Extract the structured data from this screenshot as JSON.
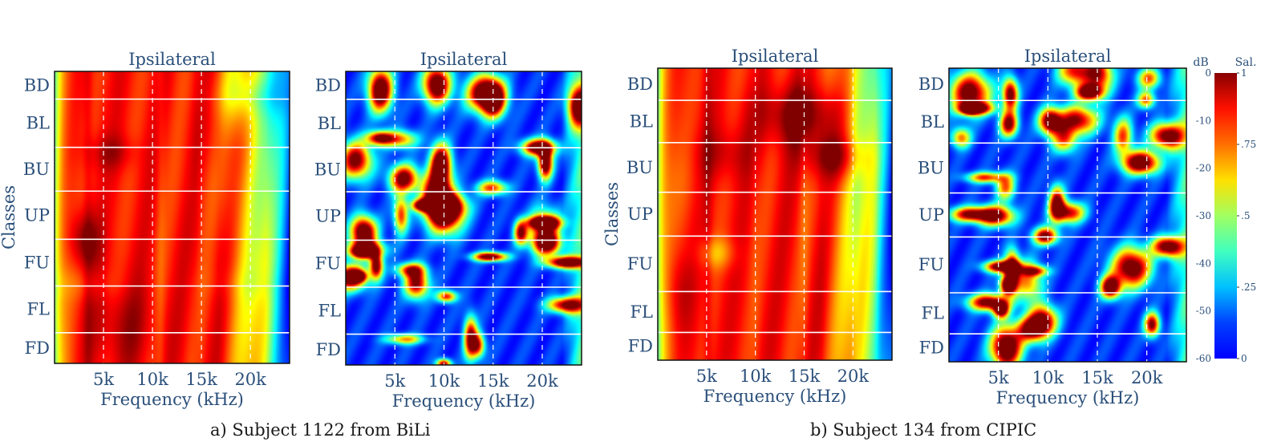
{
  "figure": {
    "panels": [
      {
        "id": "a-hrtf",
        "title": "Ipsilateral",
        "xlabel": "Frequency (kHz)",
        "ylabel": "Classes",
        "kind": "hrtf",
        "seed": 11,
        "class_bounds": [
          0.095,
          0.26,
          0.41,
          0.575,
          0.735,
          0.895
        ]
      },
      {
        "id": "a-sal",
        "title": "Ipsilateral",
        "xlabel": "Frequency (kHz)",
        "ylabel": "",
        "kind": "saliency",
        "seed": 23,
        "class_bounds": [
          0.095,
          0.26,
          0.41,
          0.575,
          0.735,
          0.895
        ]
      },
      {
        "id": "b-hrtf",
        "title": "Ipsilateral",
        "xlabel": "Frequency (kHz)",
        "ylabel": "Classes",
        "kind": "hrtf",
        "seed": 37,
        "class_bounds": [
          0.11,
          0.255,
          0.425,
          0.575,
          0.765,
          0.905
        ]
      },
      {
        "id": "b-sal",
        "title": "Ipsilateral",
        "xlabel": "Frequency (kHz)",
        "ylabel": "",
        "kind": "saliency",
        "seed": 53,
        "class_bounds": [
          0.11,
          0.255,
          0.425,
          0.575,
          0.765,
          0.905
        ]
      }
    ],
    "captions": {
      "a": "a) Subject 1122 from BiLi",
      "b": "b) Subject 134 from CIPIC"
    },
    "colorbar": {
      "db_label": "dB",
      "sal_label": "Sal.",
      "db_ticks": [
        "0",
        "-10",
        "-20",
        "-30",
        "-40",
        "-50",
        "-60"
      ],
      "sal_ticks": [
        "1",
        ".75",
        ".5",
        ".25",
        "0"
      ],
      "db_range": [
        -60,
        0
      ],
      "sal_range": [
        0,
        1
      ]
    }
  },
  "chart_data": {
    "type": "heatmap",
    "title": "Ipsilateral",
    "xlabel": "Frequency (kHz)",
    "ylabel": "Classes",
    "classes": [
      "BD",
      "BL",
      "BU",
      "UP",
      "FU",
      "FL",
      "FD"
    ],
    "x_ticks": [
      "5k",
      "10k",
      "15k",
      "20k"
    ],
    "x_tick_values_khz": [
      5,
      10,
      15,
      20
    ],
    "xlim_khz": [
      0,
      24
    ],
    "colormap": "jet",
    "hrtf_range_db": [
      -60,
      0
    ],
    "saliency_range": [
      0,
      1
    ],
    "series": [
      {
        "name": "Subject 1122 from BiLi - HRTF magnitude",
        "values": "dense spectrogram, 7 direction classes"
      },
      {
        "name": "Subject 1122 from BiLi - saliency",
        "values": "dense saliency map, 7 direction classes"
      },
      {
        "name": "Subject 134 from CIPIC - HRTF magnitude",
        "values": "dense spectrogram, 7 direction classes"
      },
      {
        "name": "Subject 134 from CIPIC - saliency",
        "values": "dense saliency map, 7 direction classes"
      }
    ]
  }
}
